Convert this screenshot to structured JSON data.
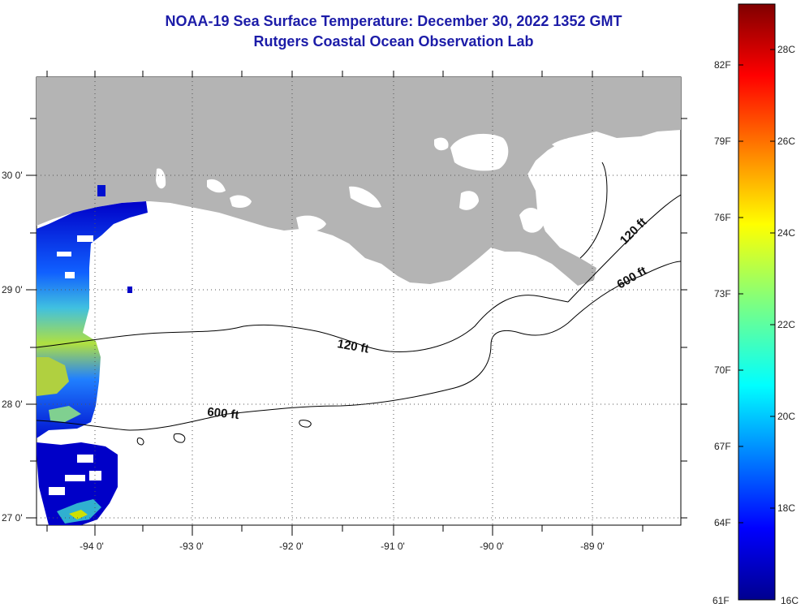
{
  "title": "NOAA-19 Sea Surface Temperature:  December 30, 2022 1352 GMT",
  "subtitle": "Rutgers Coastal Ocean Observation Lab",
  "axes": {
    "x_ticks": [
      "-94 0'",
      "-93 0'",
      "-92 0'",
      "-91 0'",
      "-90 0'",
      "-89 0'"
    ],
    "y_ticks": [
      "30 0'",
      "29 0'",
      "28 0'",
      "27 0'"
    ]
  },
  "contours": {
    "shelf_120": "120 ft",
    "shelf_600": "600 ft",
    "east_120": "120 ft",
    "east_600": "600 ft"
  },
  "colorbar": {
    "fahrenheit": [
      "82F",
      "79F",
      "76F",
      "73F",
      "70F",
      "67F",
      "64F",
      "61F"
    ],
    "celsius": [
      "28C",
      "26C",
      "24C",
      "22C",
      "20C",
      "18C",
      "16C"
    ]
  },
  "colors": {
    "title": "#1c1ca8",
    "land": "#b4b4b4",
    "sst_cold": "#00008f",
    "sst_warm": "#800000"
  }
}
